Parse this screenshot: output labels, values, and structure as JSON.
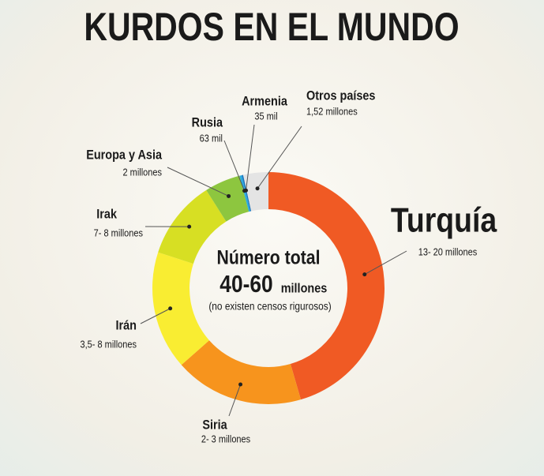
{
  "chart_data": {
    "type": "donut",
    "title": "KURDOS EN EL MUNDO",
    "center": {
      "heading": "Número total",
      "total": "40-60",
      "unit": "millones",
      "note": "(no existen censos rigurosos)"
    },
    "categories": [
      "Turquía",
      "Siria",
      "Irán",
      "Irak",
      "Europa y Asia",
      "Rusia",
      "Armenia",
      "Otros países"
    ],
    "details": [
      "13- 20 millones",
      "2- 3 millones",
      "3,5- 8 millones",
      "7- 8 millones",
      "2 millones",
      "63 mil",
      "35 mil",
      "1,52 millones"
    ],
    "values": [
      45.5,
      18,
      16.5,
      11,
      5,
      0.3,
      0.2,
      3.5
    ],
    "colors": [
      "#f05a24",
      "#f7941d",
      "#f9ed32",
      "#d7df23",
      "#8dc63f",
      "#29abe2",
      "#1c75bc",
      "#e4e4e4"
    ]
  }
}
